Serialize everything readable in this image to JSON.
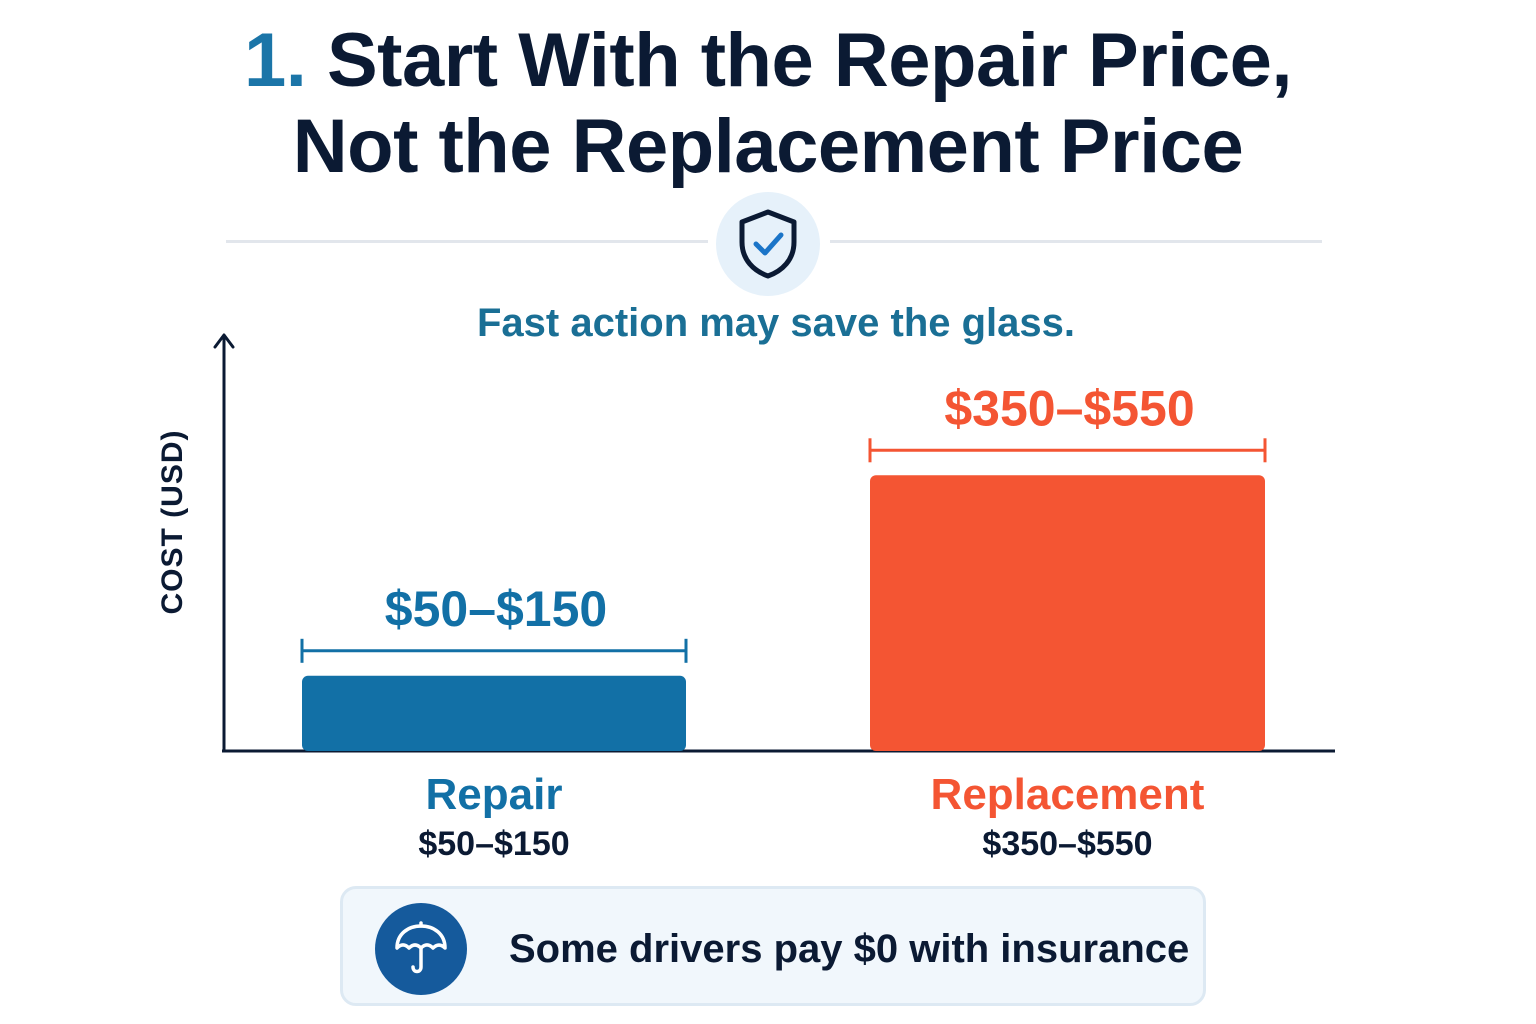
{
  "header": {
    "title_number": "1.",
    "title_line1": "Start With the Repair Price,",
    "title_line2": "Not the Replacement Price",
    "subtitle": "Fast action may save the glass.",
    "badge_icon": "shield-check-icon"
  },
  "chart_data": {
    "type": "bar",
    "title": "",
    "xlabel": "",
    "ylabel": "COST (USD)",
    "categories": [
      "Repair",
      "Replacement"
    ],
    "ranges": [
      [
        50,
        150
      ],
      [
        350,
        550
      ]
    ],
    "range_labels": [
      "$50–$150",
      "$350–$550"
    ],
    "colors": [
      "#1270a6",
      "#f45533"
    ],
    "ylim": [
      0,
      780
    ],
    "grid": false
  },
  "callout": {
    "icon": "umbrella-icon",
    "text": "Some drivers pay $0 with insurance"
  },
  "colors": {
    "title": "#0b1a33",
    "accent_blue": "#1270a6",
    "accent_red": "#f45533",
    "subtitle": "#1a6f95"
  }
}
